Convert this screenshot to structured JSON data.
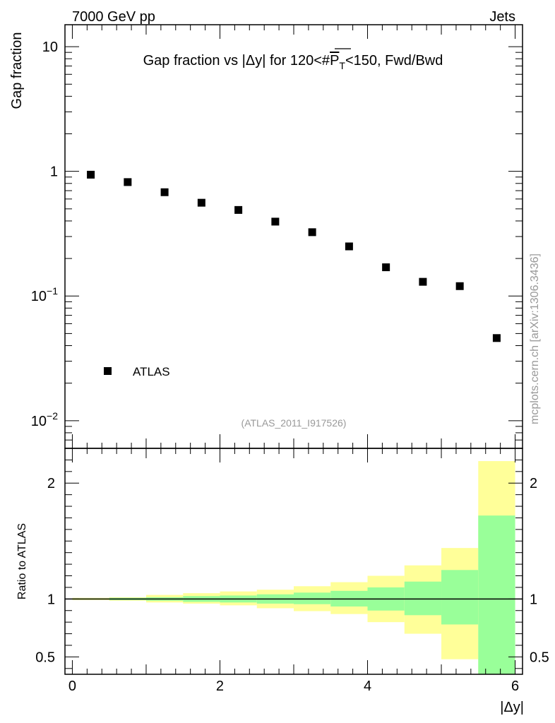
{
  "header": {
    "left": "7000 GeV pp",
    "right": "Jets"
  },
  "side_label": "mcplots.cern.ch [arXiv:1306.3436]",
  "colors": {
    "yellow": "#ffff99",
    "green": "#99ff99",
    "marker": "#000000",
    "line": "#000000"
  },
  "chart_data": [
    {
      "type": "scatter",
      "title_parts": {
        "prefix": "Gap fraction vs |",
        "delta": "Δ",
        "mid": "y| for 120<#",
        "pbar": "P",
        "sub": "T",
        "suffix": "<150, Fwd/Bwd"
      },
      "ylabel": "Gap fraction",
      "yscale": "log",
      "ylim": [
        0.006,
        15
      ],
      "xlim": [
        -0.1,
        6.1
      ],
      "ytick_labels": [
        {
          "value": 10,
          "base": "10",
          "exp": ""
        },
        {
          "value": 1,
          "base": "1",
          "exp": ""
        },
        {
          "value": 0.1,
          "base": "10",
          "exp": "−1"
        },
        {
          "value": 0.01,
          "base": "10",
          "exp": "−2"
        }
      ],
      "legend": {
        "label": "ATLAS",
        "position": "bottom-left"
      },
      "analysis_tag": "(ATLAS_2011_I917526)",
      "series": [
        {
          "name": "ATLAS",
          "x": [
            0.25,
            0.75,
            1.25,
            1.75,
            2.25,
            2.75,
            3.25,
            3.75,
            4.25,
            4.75,
            5.25,
            5.75
          ],
          "y": [
            0.94,
            0.82,
            0.68,
            0.56,
            0.49,
            0.395,
            0.325,
            0.25,
            0.17,
            0.13,
            0.12,
            0.046
          ]
        }
      ]
    },
    {
      "type": "area",
      "ylabel": "Ratio to ATLAS",
      "xlabel": "|Δy|",
      "ylim": [
        0.35,
        2.3
      ],
      "xlim": [
        -0.1,
        6.1
      ],
      "xticks": [
        0,
        2,
        4,
        6
      ],
      "yticks": [
        0.5,
        1,
        2
      ],
      "ytick_labels": [
        "0.5",
        "1",
        "2"
      ],
      "xtick_labels": [
        "0",
        "2",
        "4",
        "6"
      ],
      "bins": [
        0,
        0.5,
        1,
        1.5,
        2,
        2.5,
        3,
        3.5,
        4,
        4.5,
        5,
        5.5,
        6
      ],
      "band_outer_yellow": {
        "lo": [
          0.99,
          0.985,
          0.97,
          0.96,
          0.945,
          0.92,
          0.895,
          0.87,
          0.8,
          0.7,
          0.48,
          0.3
        ],
        "hi": [
          1.01,
          1.015,
          1.035,
          1.05,
          1.065,
          1.08,
          1.11,
          1.145,
          1.2,
          1.29,
          1.44,
          2.19
        ]
      },
      "band_inner_green": {
        "lo": [
          0.995,
          0.99,
          0.985,
          0.975,
          0.97,
          0.96,
          0.955,
          0.935,
          0.9,
          0.86,
          0.78,
          0.3
        ],
        "hi": [
          1.005,
          1.01,
          1.015,
          1.025,
          1.03,
          1.04,
          1.055,
          1.07,
          1.1,
          1.15,
          1.25,
          1.72
        ]
      },
      "reference_line": 1
    }
  ]
}
